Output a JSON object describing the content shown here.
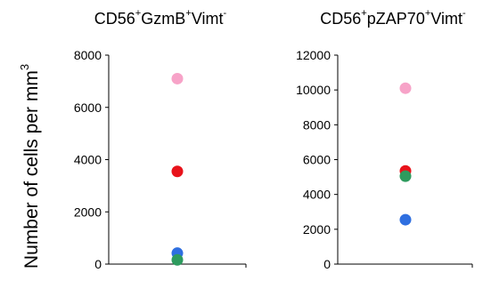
{
  "y_axis_label": {
    "main": "Number of cells per mm",
    "sup": "3"
  },
  "chart_data": [
    {
      "type": "scatter",
      "title_parts": [
        {
          "text": "CD56",
          "sup": false
        },
        {
          "text": "+",
          "sup": true
        },
        {
          "text": "GzmB",
          "sup": false
        },
        {
          "text": "+",
          "sup": true
        },
        {
          "text": "Vimt",
          "sup": false
        },
        {
          "text": "-",
          "sup": true
        }
      ],
      "ylim": [
        0,
        8000
      ],
      "yticks": [
        0,
        2000,
        4000,
        6000,
        8000
      ],
      "points": [
        {
          "y": 7100,
          "color": "#f7a3c8"
        },
        {
          "y": 3550,
          "color": "#e8131b"
        },
        {
          "y": 420,
          "color": "#2f6fe0"
        },
        {
          "y": 160,
          "color": "#2e9b5e"
        }
      ]
    },
    {
      "type": "scatter",
      "title_parts": [
        {
          "text": "CD56",
          "sup": false
        },
        {
          "text": "+",
          "sup": true
        },
        {
          "text": "pZAP70",
          "sup": false
        },
        {
          "text": "+",
          "sup": true
        },
        {
          "text": "Vimt",
          "sup": false
        },
        {
          "text": "-",
          "sup": true
        }
      ],
      "ylim": [
        0,
        12000
      ],
      "yticks": [
        0,
        2000,
        4000,
        6000,
        8000,
        10000,
        12000
      ],
      "points": [
        {
          "y": 10100,
          "color": "#f7a3c8"
        },
        {
          "y": 5350,
          "color": "#e8131b"
        },
        {
          "y": 5050,
          "color": "#2e9b5e"
        },
        {
          "y": 2550,
          "color": "#2f6fe0"
        }
      ]
    }
  ]
}
